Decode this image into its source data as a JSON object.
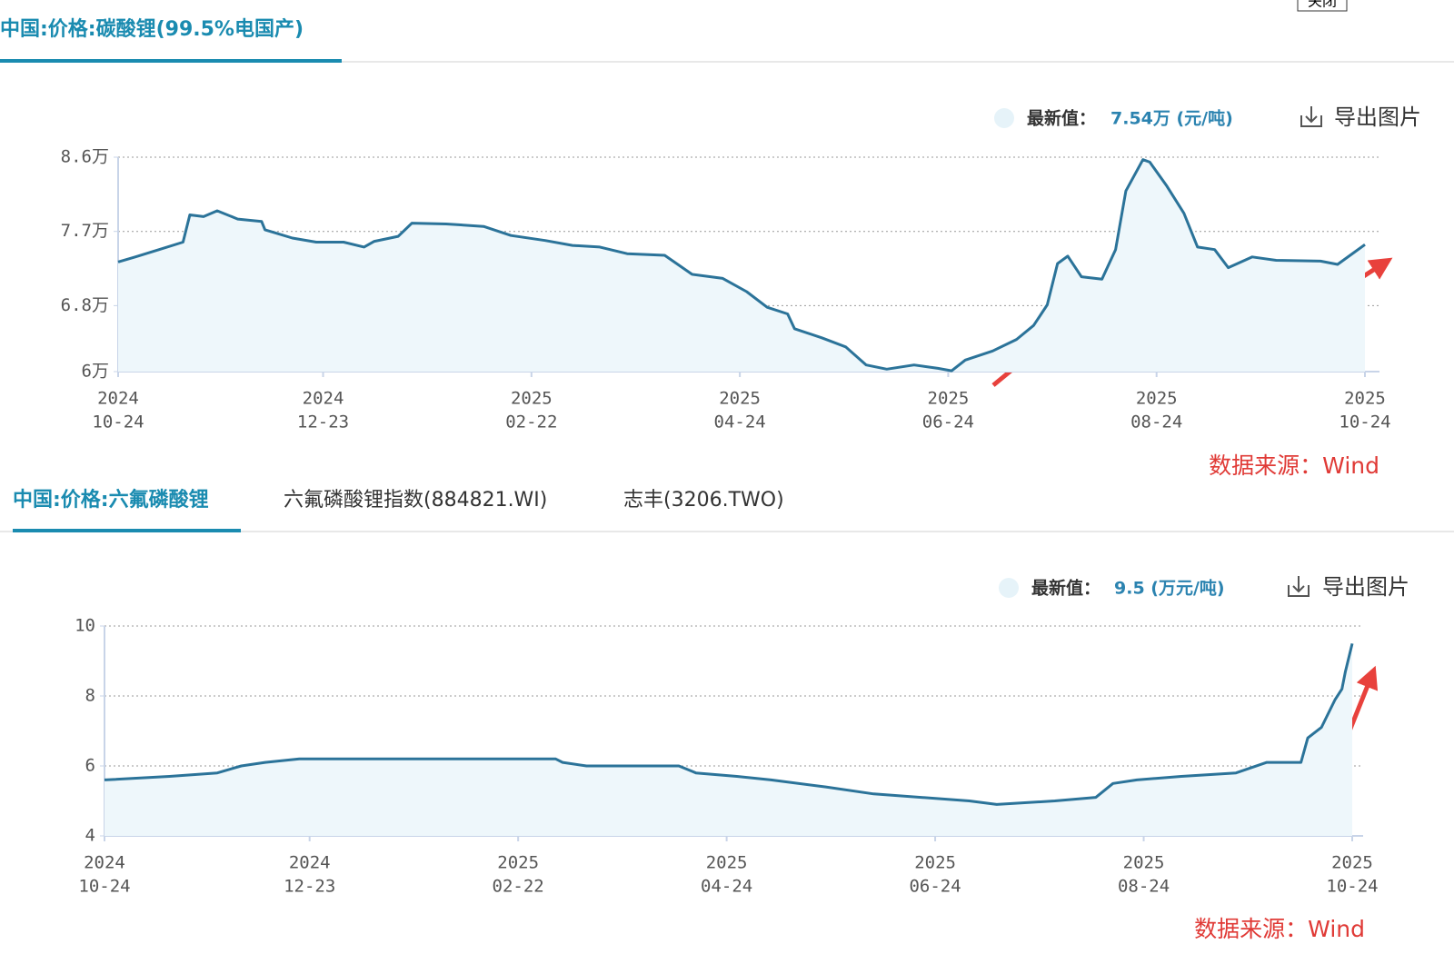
{
  "close": "关闭",
  "chart_data": [
    {
      "type": "area",
      "title": "中国:价格:碳酸锂(99.5%电国产)",
      "latest_label": "最新值：",
      "latest_value": "7.54万 (元/吨)",
      "export": "导出图片",
      "source": "数据来源：Wind",
      "color": "#2b7399",
      "fill": "#eef7fb",
      "grid": true,
      "xlim": [
        "2024-10-24",
        "2025-10-24"
      ],
      "xticks": [
        {
          "value": "2024-10-24",
          "label": [
            "2024",
            "10-24"
          ]
        },
        {
          "value": "2024-12-23",
          "label": [
            "2024",
            "12-23"
          ]
        },
        {
          "value": "2025-02-22",
          "label": [
            "2025",
            "02-22"
          ]
        },
        {
          "value": "2025-04-24",
          "label": [
            "2025",
            "04-24"
          ]
        },
        {
          "value": "2025-06-24",
          "label": [
            "2025",
            "06-24"
          ]
        },
        {
          "value": "2025-08-24",
          "label": [
            "2025",
            "08-24"
          ]
        },
        {
          "value": "2025-10-24",
          "label": [
            "2025",
            "10-24"
          ]
        }
      ],
      "ylim": [
        6,
        8.6
      ],
      "yticks": [
        {
          "value": 6,
          "label": "6万"
        },
        {
          "value": 6.8,
          "label": "6.8万"
        },
        {
          "value": 7.7,
          "label": "7.7万"
        },
        {
          "value": 8.6,
          "label": "8.6万"
        }
      ],
      "x": [
        "2024-10-24",
        "2024-10-29",
        "2024-11-05",
        "2024-11-12",
        "2024-11-14",
        "2024-11-18",
        "2024-11-22",
        "2024-11-28",
        "2024-12-05",
        "2024-12-06",
        "2024-12-14",
        "2024-12-21",
        "2024-12-29",
        "2025-01-04",
        "2025-01-07",
        "2025-01-14",
        "2025-01-18",
        "2025-01-28",
        "2025-02-08",
        "2025-02-16",
        "2025-02-26",
        "2025-03-06",
        "2025-03-14",
        "2025-03-22",
        "2025-04-02",
        "2025-04-10",
        "2025-04-19",
        "2025-04-26",
        "2025-05-02",
        "2025-05-08",
        "2025-05-10",
        "2025-05-18",
        "2025-05-25",
        "2025-05-31",
        "2025-06-06",
        "2025-06-14",
        "2025-06-21",
        "2025-06-25",
        "2025-06-29",
        "2025-07-07",
        "2025-07-14",
        "2025-07-19",
        "2025-07-23",
        "2025-07-26",
        "2025-07-29",
        "2025-08-02",
        "2025-08-08",
        "2025-08-12",
        "2025-08-15",
        "2025-08-20",
        "2025-08-22",
        "2025-08-27",
        "2025-09-01",
        "2025-09-05",
        "2025-09-10",
        "2025-09-14",
        "2025-09-21",
        "2025-09-28",
        "2025-10-11",
        "2025-10-16",
        "2025-10-21",
        "2025-10-24"
      ],
      "values": [
        7.33,
        7.39,
        7.48,
        7.57,
        7.9,
        7.88,
        7.95,
        7.85,
        7.82,
        7.72,
        7.62,
        7.57,
        7.57,
        7.51,
        7.58,
        7.64,
        7.8,
        7.79,
        7.76,
        7.65,
        7.59,
        7.53,
        7.51,
        7.43,
        7.41,
        7.18,
        7.13,
        6.97,
        6.78,
        6.7,
        6.52,
        6.41,
        6.3,
        6.08,
        6.03,
        6.08,
        6.04,
        6.01,
        6.14,
        6.25,
        6.39,
        6.56,
        6.81,
        7.31,
        7.4,
        7.15,
        7.12,
        7.48,
        8.19,
        8.57,
        8.54,
        8.25,
        7.92,
        7.51,
        7.48,
        7.26,
        7.39,
        7.35,
        7.34,
        7.3,
        7.45,
        7.54
      ]
    },
    {
      "type": "area",
      "title": "中国:价格:六氟磷酸锂",
      "tabs": [
        "六氟磷酸锂指数(884821.WI)",
        "志丰(3206.TWO)"
      ],
      "latest_label": "最新值：",
      "latest_value": "9.5 (万元/吨)",
      "export": "导出图片",
      "source": "数据来源：Wind",
      "color": "#2b7399",
      "fill": "#eef7fb",
      "grid": true,
      "xlim": [
        "2024-10-24",
        "2025-10-24"
      ],
      "xticks": [
        {
          "value": "2024-10-24",
          "label": [
            "2024",
            "10-24"
          ]
        },
        {
          "value": "2024-12-23",
          "label": [
            "2024",
            "12-23"
          ]
        },
        {
          "value": "2025-02-22",
          "label": [
            "2025",
            "02-22"
          ]
        },
        {
          "value": "2025-04-24",
          "label": [
            "2025",
            "04-24"
          ]
        },
        {
          "value": "2025-06-24",
          "label": [
            "2025",
            "06-24"
          ]
        },
        {
          "value": "2025-08-24",
          "label": [
            "2025",
            "08-24"
          ]
        },
        {
          "value": "2025-10-24",
          "label": [
            "2025",
            "10-24"
          ]
        }
      ],
      "ylim": [
        4,
        10
      ],
      "yticks": [
        4,
        6,
        8,
        10
      ],
      "x": [
        "2024-10-24",
        "2024-11-12",
        "2024-11-26",
        "2024-12-03",
        "2024-12-10",
        "2024-12-20",
        "2025-03-05",
        "2025-03-07",
        "2025-03-14",
        "2025-04-10",
        "2025-04-15",
        "2025-04-27",
        "2025-05-07",
        "2025-05-23",
        "2025-06-06",
        "2025-07-04",
        "2025-07-12",
        "2025-07-29",
        "2025-08-10",
        "2025-08-15",
        "2025-08-22",
        "2025-09-04",
        "2025-09-20",
        "2025-09-29",
        "2025-10-09",
        "2025-10-11",
        "2025-10-15",
        "2025-10-19",
        "2025-10-21",
        "2025-10-22",
        "2025-10-24"
      ],
      "values": [
        5.6,
        5.7,
        5.8,
        6.0,
        6.1,
        6.2,
        6.2,
        6.1,
        6.0,
        6.0,
        5.8,
        5.7,
        5.6,
        5.4,
        5.2,
        5.0,
        4.9,
        5.0,
        5.1,
        5.5,
        5.6,
        5.7,
        5.8,
        6.1,
        6.1,
        6.8,
        7.1,
        7.9,
        8.2,
        8.7,
        9.5
      ]
    }
  ]
}
